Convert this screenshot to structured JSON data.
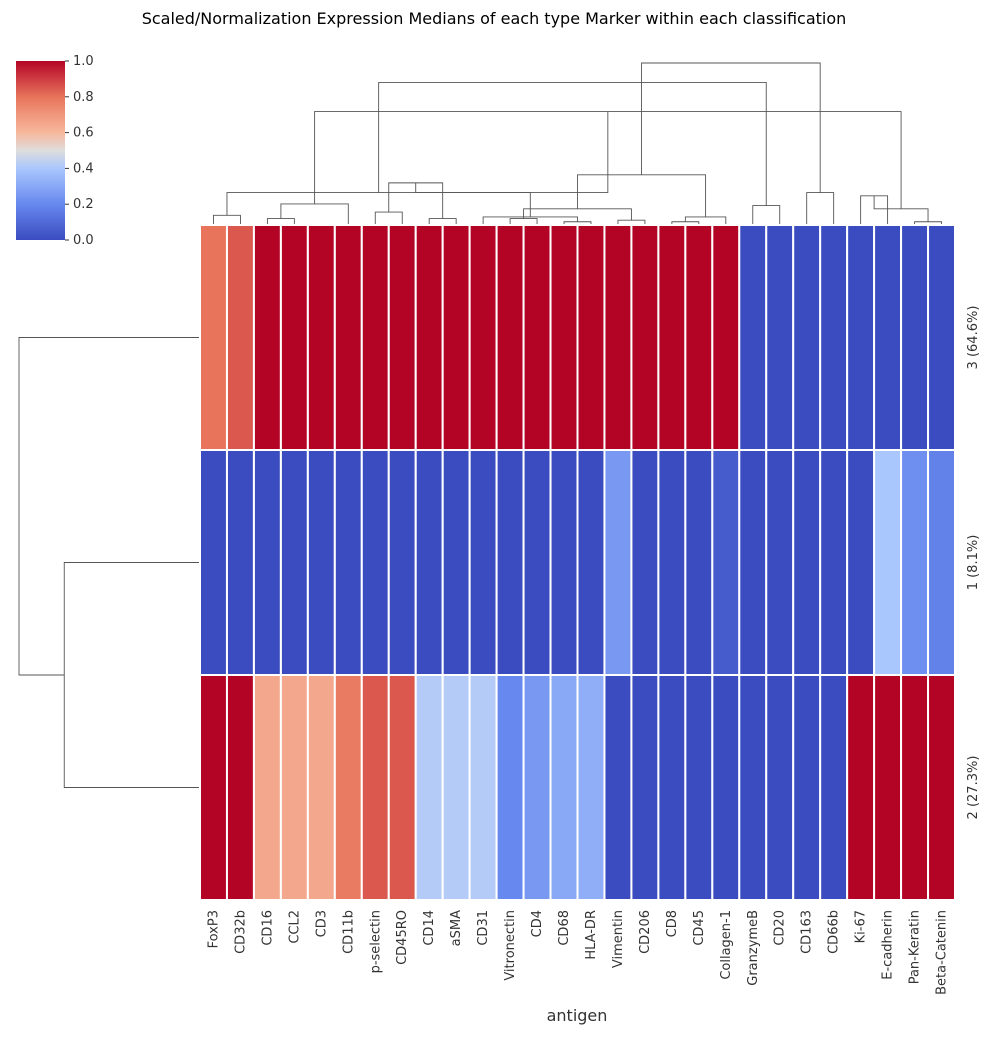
{
  "chart_data": {
    "type": "heatmap",
    "title": "Scaled/Normalization Expression Medians of each type Marker within each classification",
    "xlabel": "antigen",
    "ylabel": "",
    "columns": [
      "FoxP3",
      "CD32b",
      "CD16",
      "CCL2",
      "CD3",
      "CD11b",
      "p-selectin",
      "CD45RO",
      "CD14",
      "aSMA",
      "CD31",
      "Vitronectin",
      "CD4",
      "CD68",
      "HLA-DR",
      "Vimentin",
      "CD206",
      "CD8",
      "CD45",
      "Collagen-1",
      "GranzymeB",
      "CD20",
      "CD163",
      "CD66b",
      "Ki-67",
      "E-cadherin",
      "Pan-Keratin",
      "Beta-Catenin"
    ],
    "rows": [
      "3 (64.6%)",
      "1 (8.1%)",
      "2 (27.3%)"
    ],
    "values": [
      [
        0.8,
        0.85,
        1,
        1,
        1,
        1,
        1,
        1,
        1,
        1,
        1,
        1,
        1,
        1,
        1,
        1,
        1,
        1,
        1,
        1,
        0,
        0,
        0,
        0,
        0,
        0,
        0,
        0
      ],
      [
        0,
        0,
        0,
        0,
        0,
        0,
        0,
        0,
        0,
        0,
        0,
        0,
        0,
        0,
        0,
        0.25,
        0,
        0,
        0,
        0.05,
        0,
        0,
        0,
        0,
        0,
        0.4,
        0.22,
        0.18
      ],
      [
        1,
        1,
        0.65,
        0.65,
        0.65,
        0.78,
        0.85,
        0.85,
        0.42,
        0.42,
        0.42,
        0.2,
        0.25,
        0.3,
        0.32,
        0,
        0,
        0,
        0,
        0,
        0,
        0,
        0,
        0,
        1,
        1,
        1,
        1
      ]
    ],
    "colorbar": {
      "min": 0.0,
      "max": 1.0,
      "ticks": [
        0.0,
        0.2,
        0.4,
        0.6,
        0.8,
        1.0
      ],
      "tick_labels": [
        "0.0",
        "0.2",
        "0.4",
        "0.6",
        "0.8",
        "1.0"
      ],
      "colormap": "coolwarm",
      "low_color": "#3b4cc0",
      "mid_color": "#dddddd",
      "high_color": "#b40426"
    },
    "column_dendrogram": [
      [
        0,
        1,
        0.06
      ],
      [
        11,
        12,
        0.04
      ],
      [
        13,
        14,
        0.02
      ],
      [
        15,
        16,
        0.03
      ],
      [
        17,
        18,
        0.02
      ],
      [
        24,
        25,
        0.18
      ],
      [
        26,
        27,
        0.02
      ],
      [
        2,
        3,
        0.04
      ],
      [
        6,
        7,
        0.08
      ],
      [
        8,
        9,
        0.04
      ],
      [
        10,
        30,
        0.05
      ],
      [
        29,
        31,
        0.1
      ],
      [
        32,
        19,
        0.05
      ],
      [
        33,
        34,
        0.1
      ],
      [
        35,
        5,
        0.13
      ],
      [
        36,
        37,
        0.26
      ],
      [
        38,
        28,
        0.2
      ],
      [
        39,
        40,
        0.31
      ],
      [
        41,
        42,
        0.7
      ],
      [
        20,
        21,
        0.12
      ],
      [
        22,
        23,
        0.2
      ],
      [
        46,
        43,
        0.2
      ],
      [
        47,
        44,
        0.88
      ],
      [
        45,
        48,
        1.0
      ]
    ],
    "row_dendrogram": [
      [
        1,
        2,
        0.75
      ],
      [
        0,
        3,
        1.0
      ]
    ]
  },
  "colors": {
    "dendrogram_line": "#555555",
    "label_text": "#333333",
    "cell_border": "#ffffff"
  }
}
